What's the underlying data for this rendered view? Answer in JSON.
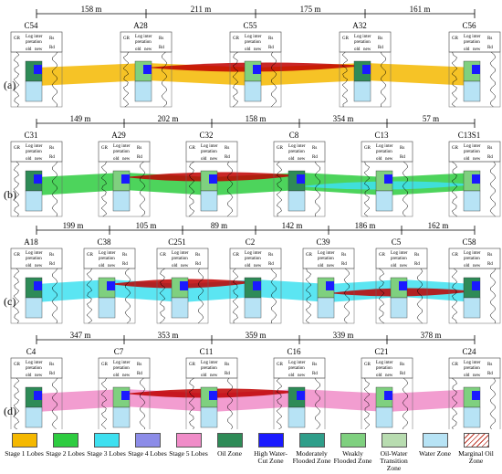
{
  "well_header": {
    "gr": "GR",
    "log": "Log inter",
    "log2": "pretation",
    "old": "old",
    "new": "new",
    "rs": "Rs",
    "rd": "Rd"
  },
  "panels": [
    {
      "label": "(a)",
      "distances": [
        "158 m",
        "211 m",
        "175 m",
        "161 m"
      ],
      "wells": [
        "C54",
        "A28",
        "C55",
        "A32",
        "C56"
      ]
    },
    {
      "label": "(b)",
      "distances": [
        "149 m",
        "202 m",
        "158 m",
        "354 m",
        "57 m"
      ],
      "wells": [
        "C31",
        "A29",
        "C32",
        "C8",
        "C13",
        "C13S1"
      ]
    },
    {
      "label": "(c)",
      "distances": [
        "199 m",
        "105 m",
        "89 m",
        "142 m",
        "186 m",
        "162 m"
      ],
      "wells": [
        "A18",
        "C38",
        "C251",
        "C2",
        "C39",
        "C5",
        "C58"
      ]
    },
    {
      "label": "(d)",
      "distances": [
        "347 m",
        "353 m",
        "359 m",
        "339 m",
        "378 m"
      ],
      "wells": [
        "C4",
        "C7",
        "C11",
        "C16",
        "C21",
        "C24"
      ]
    }
  ],
  "legend": [
    {
      "name": "Stage 1 Lobes",
      "color": "#f5b800"
    },
    {
      "name": "Stage 2 Lobes",
      "color": "#2ecc40"
    },
    {
      "name": "Stage 3 Lobes",
      "color": "#3ee0f0"
    },
    {
      "name": "Stage 4 Lobes",
      "color": "#8c8ce8"
    },
    {
      "name": "Stage 5 Lobes",
      "color": "#f08cc8"
    },
    {
      "name": "Oil Zone",
      "color": "#2e8b57"
    },
    {
      "name": "High Water-Cut Zone",
      "color": "#1a1aff"
    },
    {
      "name": "Moderately Flooded Zone",
      "color": "#2f9e8a"
    },
    {
      "name": "Weakly Flooded Zone",
      "color": "#7fd07f"
    },
    {
      "name": "Oil-Water Transition Zone",
      "color": "#b8dcb0"
    },
    {
      "name": "Water Zone",
      "color": "#b7e3f5"
    },
    {
      "name": "Marginal Oil Zone",
      "color": "#ffffff"
    }
  ]
}
